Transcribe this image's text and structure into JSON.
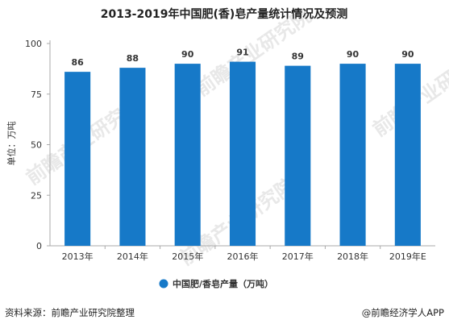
{
  "chart_data": {
    "type": "bar",
    "title": "2013-2019年中国肥(香)皂产量统计情况及预测",
    "ylabel": "单位：万吨",
    "xlabel": "",
    "categories": [
      "2013年",
      "2014年",
      "2015年",
      "2016年",
      "2017年",
      "2018年",
      "2019年E"
    ],
    "series": [
      {
        "name": "中国肥/香皂产量（万吨）",
        "values": [
          86,
          88,
          90,
          91,
          89,
          90,
          90
        ],
        "color": "#1679c8"
      }
    ],
    "ylim": [
      0,
      100
    ],
    "yticks": [
      0,
      25,
      50,
      75,
      100
    ],
    "grid": false,
    "legend_position": "bottom"
  },
  "footer": {
    "source": "资料来源：前瞻产业研究院整理",
    "credit": "@前瞻经济学人APP"
  },
  "watermark": {
    "text": "前瞻产业研究院"
  }
}
